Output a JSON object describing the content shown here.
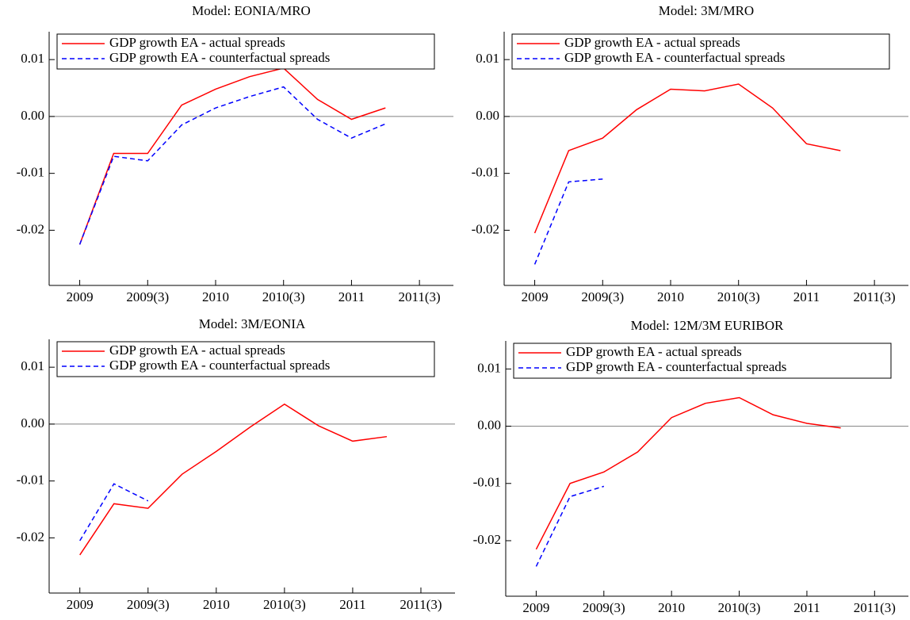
{
  "chart_data": [
    {
      "type": "line",
      "title": "Model: EONIA/MRO",
      "x": [
        0,
        1,
        2,
        3,
        4,
        5,
        6,
        7,
        8,
        9
      ],
      "series": [
        {
          "name": "GDP growth EA - actual spreads",
          "color": "#ff0000",
          "dash": false,
          "values": [
            -0.0225,
            -0.0065,
            -0.0065,
            0.002,
            0.0048,
            0.007,
            0.0085,
            0.003,
            -0.0005,
            0.0015
          ]
        },
        {
          "name": "GDP growth EA - counterfactual spreads",
          "color": "#0000ff",
          "dash": true,
          "values": [
            -0.0225,
            -0.007,
            -0.0078,
            -0.0015,
            0.0015,
            0.0035,
            0.0052,
            -0.0005,
            -0.0038,
            -0.0013
          ]
        }
      ],
      "xlim": [
        -0.9,
        11
      ],
      "ylim": [
        -0.0297,
        0.0149
      ],
      "xticks": [
        {
          "value": 0,
          "label": "2009"
        },
        {
          "value": 2,
          "label": "2009(3)"
        },
        {
          "value": 4,
          "label": "2010"
        },
        {
          "value": 6,
          "label": "2010(3)"
        },
        {
          "value": 8,
          "label": "2011"
        },
        {
          "value": 10,
          "label": "2011(3)"
        }
      ],
      "yticks": [
        -0.02,
        -0.01,
        {
          "value": 0,
          "label": "0.00"
        },
        0.01
      ],
      "hline": 0
    },
    {
      "type": "line",
      "title": "Model: 3M/MRO",
      "x": [
        0,
        1,
        2,
        3,
        4,
        5,
        6,
        7,
        8,
        9
      ],
      "series": [
        {
          "name": "GDP growth EA - actual spreads",
          "color": "#ff0000",
          "dash": false,
          "values": [
            -0.0205,
            -0.006,
            -0.0038,
            0.0012,
            0.0048,
            0.0045,
            0.0057,
            0.0015,
            -0.0048,
            -0.006
          ]
        },
        {
          "name": "GDP growth EA - counterfactual spreads",
          "color": "#0000ff",
          "dash": true,
          "values": [
            -0.026,
            -0.0115,
            -0.011,
            null,
            null,
            null,
            null,
            null,
            null,
            null
          ]
        }
      ],
      "xlim": [
        -0.9,
        11
      ],
      "ylim": [
        -0.0297,
        0.0149
      ],
      "xticks": [
        {
          "value": 0,
          "label": "2009"
        },
        {
          "value": 2,
          "label": "2009(3)"
        },
        {
          "value": 4,
          "label": "2010"
        },
        {
          "value": 6,
          "label": "2010(3)"
        },
        {
          "value": 8,
          "label": "2011"
        },
        {
          "value": 10,
          "label": "2011(3)"
        }
      ],
      "yticks": [
        -0.02,
        -0.01,
        {
          "value": 0,
          "label": "0.00"
        },
        0.01
      ],
      "hline": 0
    },
    {
      "type": "line",
      "title": "Model: 3M/EONIA",
      "x": [
        0,
        1,
        2,
        3,
        4,
        5,
        6,
        7,
        8,
        9
      ],
      "series": [
        {
          "name": "GDP growth EA - actual spreads",
          "color": "#ff0000",
          "dash": false,
          "values": [
            -0.023,
            -0.014,
            -0.0148,
            -0.0088,
            -0.0048,
            -0.0005,
            0.0035,
            -0.0003,
            -0.003,
            -0.0022
          ]
        },
        {
          "name": "GDP growth EA - counterfactual spreads",
          "color": "#0000ff",
          "dash": true,
          "values": [
            -0.0205,
            -0.0105,
            -0.0135,
            null,
            null,
            null,
            null,
            null,
            null,
            null
          ]
        }
      ],
      "xlim": [
        -0.9,
        11
      ],
      "ylim": [
        -0.0297,
        0.0149
      ],
      "xticks": [
        {
          "value": 0,
          "label": "2009"
        },
        {
          "value": 2,
          "label": "2009(3)"
        },
        {
          "value": 4,
          "label": "2010"
        },
        {
          "value": 6,
          "label": "2010(3)"
        },
        {
          "value": 8,
          "label": "2011"
        },
        {
          "value": 10,
          "label": "2011(3)"
        }
      ],
      "yticks": [
        -0.02,
        -0.01,
        {
          "value": 0,
          "label": "0.00"
        },
        0.01
      ],
      "hline": 0
    },
    {
      "type": "line",
      "title": "Model: 12M/3M EURIBOR",
      "x": [
        0,
        1,
        2,
        3,
        4,
        5,
        6,
        7,
        8,
        9
      ],
      "series": [
        {
          "name": "GDP growth EA - actual spreads",
          "color": "#ff0000",
          "dash": false,
          "values": [
            -0.0215,
            -0.01,
            -0.008,
            -0.0045,
            0.0015,
            0.004,
            0.005,
            0.002,
            0.0005,
            -0.0003
          ]
        },
        {
          "name": "GDP growth EA - counterfactual spreads",
          "color": "#0000ff",
          "dash": true,
          "values": [
            -0.0245,
            -0.0123,
            -0.0105,
            null,
            null,
            null,
            null,
            null,
            null,
            null
          ]
        }
      ],
      "xlim": [
        -0.9,
        11
      ],
      "ylim": [
        -0.0297,
        0.0149
      ],
      "xticks": [
        {
          "value": 0,
          "label": "2009"
        },
        {
          "value": 2,
          "label": "2009(3)"
        },
        {
          "value": 4,
          "label": "2010"
        },
        {
          "value": 6,
          "label": "2010(3)"
        },
        {
          "value": 8,
          "label": "2011"
        },
        {
          "value": 10,
          "label": "2011(3)"
        }
      ],
      "yticks": [
        -0.02,
        -0.01,
        {
          "value": 0,
          "label": "0.00"
        },
        0.01
      ],
      "hline": 0
    }
  ]
}
